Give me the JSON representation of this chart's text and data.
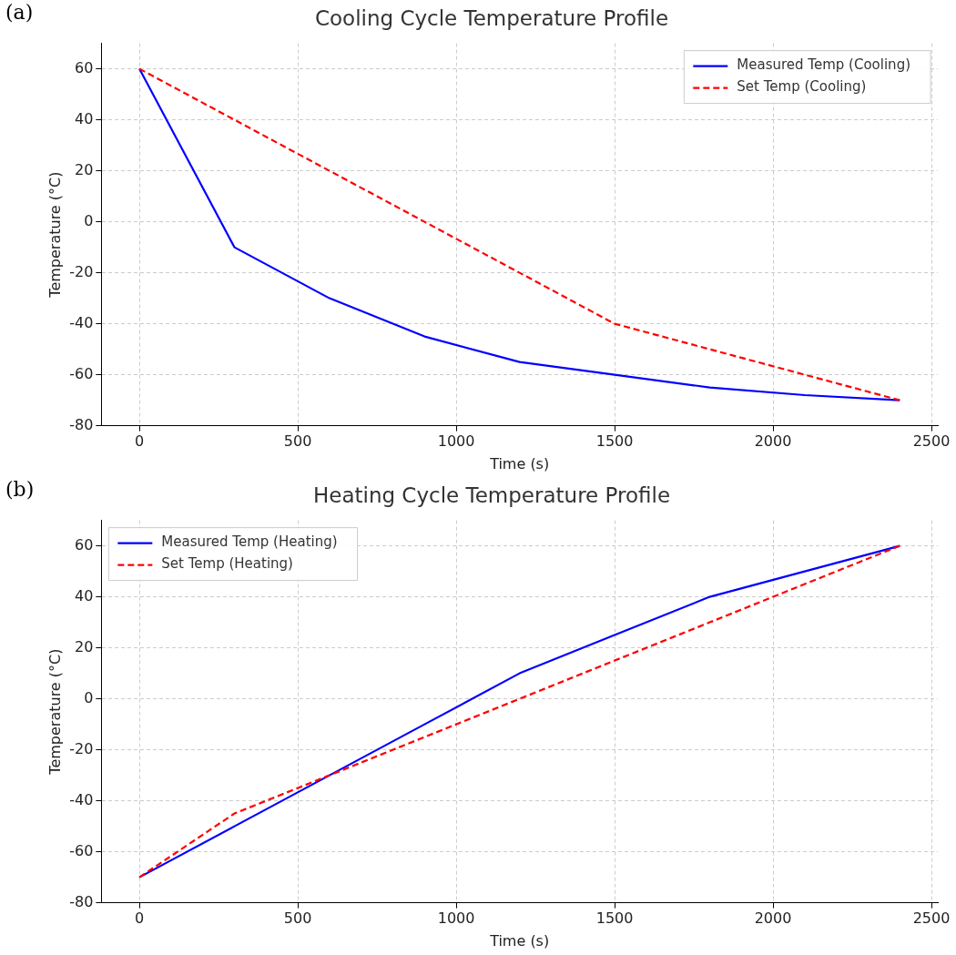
{
  "chart_data": [
    {
      "type": "line",
      "title": "Cooling Cycle Temperature Profile",
      "xlabel": "Time (s)",
      "ylabel": "Temperature (°C)",
      "annotations": [
        "(a)"
      ],
      "xlim": [
        -120,
        2520
      ],
      "xticks": [
        0,
        500,
        1000,
        1500,
        2000,
        2500
      ],
      "ylim": [
        -80,
        70
      ],
      "yticks": [
        -80,
        -60,
        -40,
        -20,
        0,
        20,
        40,
        60
      ],
      "grid": true,
      "legend": "top right",
      "marker": "none",
      "series": [
        {
          "name": "Measured Temp (Cooling)",
          "color": "#0000ff",
          "line_style": "solid",
          "x": [
            0,
            300,
            600,
            900,
            1200,
            1500,
            1800,
            2100,
            2400
          ],
          "values": [
            60,
            -10,
            -30,
            -45,
            -55,
            -60,
            -65,
            -68,
            -70
          ]
        },
        {
          "name": "Set Temp (Cooling)",
          "color": "#ff0000",
          "line_style": "dashed",
          "x": [
            0,
            300,
            600,
            900,
            1200,
            1500,
            1800,
            2100,
            2400
          ],
          "values": [
            60,
            40,
            20,
            0,
            -20,
            -40,
            -50,
            -60,
            -70
          ]
        }
      ]
    },
    {
      "type": "line",
      "title": "Heating Cycle Temperature Profile",
      "xlabel": "Time (s)",
      "ylabel": "Temperature (°C)",
      "annotations": [
        "(b)"
      ],
      "xlim": [
        -120,
        2520
      ],
      "xticks": [
        0,
        500,
        1000,
        1500,
        2000,
        2500
      ],
      "ylim": [
        -80,
        70
      ],
      "yticks": [
        -80,
        -60,
        -40,
        -20,
        0,
        20,
        40,
        60
      ],
      "grid": true,
      "legend": "top left",
      "marker": "none",
      "series": [
        {
          "name": "Measured Temp (Heating)",
          "color": "#0000ff",
          "line_style": "solid",
          "x": [
            0,
            300,
            600,
            900,
            1200,
            1500,
            1800,
            2100,
            2400
          ],
          "values": [
            -70,
            -50,
            -30,
            -10,
            10,
            25,
            40,
            50,
            60
          ]
        },
        {
          "name": "Set Temp (Heating)",
          "color": "#ff0000",
          "line_style": "dashed",
          "x": [
            0,
            300,
            600,
            900,
            1200,
            1500,
            1800,
            2100,
            2400
          ],
          "values": [
            -70,
            -45,
            -30,
            -15,
            0,
            15,
            30,
            45,
            60
          ]
        }
      ]
    }
  ]
}
